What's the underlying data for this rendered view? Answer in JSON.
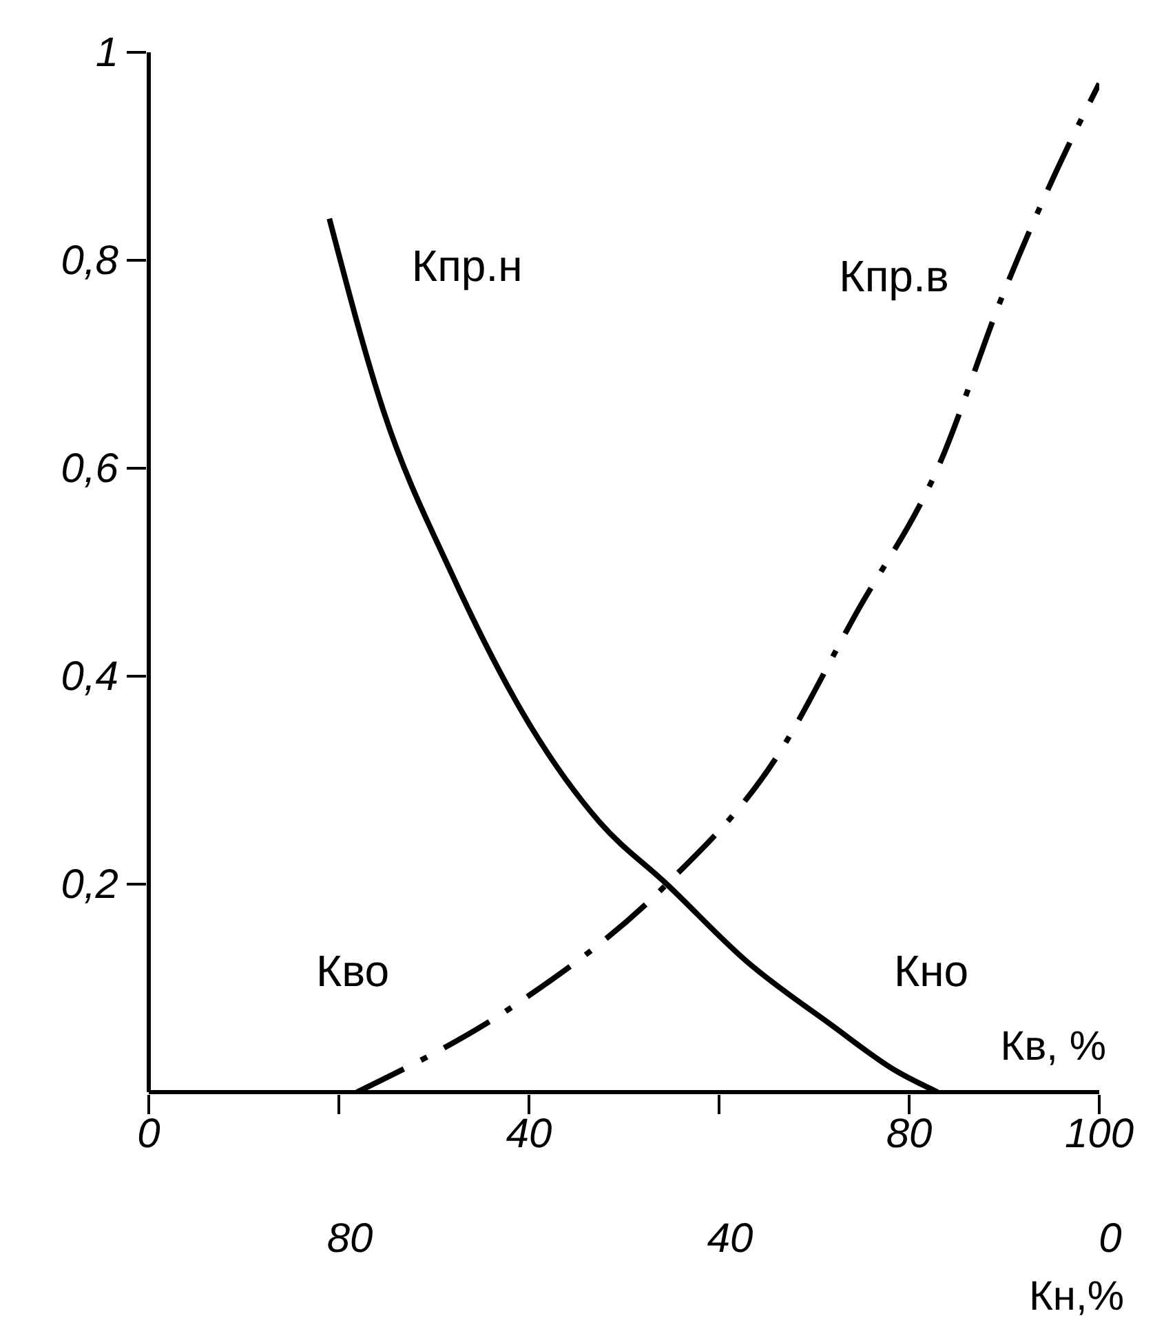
{
  "chart_data": {
    "type": "line",
    "xlabel": "Кв, %",
    "x2label": "Кн,%",
    "xlim": [
      0,
      100
    ],
    "xticks": [
      0,
      {
        "value": 20,
        "label": null
      },
      40,
      {
        "value": 60,
        "label": null
      },
      80,
      100
    ],
    "x2lim": [
      100,
      0
    ],
    "x2ticks": [
      80,
      40,
      0
    ],
    "ylim": [
      0,
      1
    ],
    "yticks": [
      {
        "value": 0.2,
        "label": "0,2"
      },
      {
        "value": 0.4,
        "label": "0,4"
      },
      {
        "value": 0.6,
        "label": "0,6"
      },
      {
        "value": 0.8,
        "label": "0,8"
      },
      1
    ],
    "grid": false,
    "legend": false,
    "annotations": [
      "Кво",
      "Кно"
    ],
    "series": [
      {
        "name": "Кпр.н",
        "color": "#000000",
        "line_style": "solid",
        "x": [
          19,
          24.7,
          31.8,
          40.3,
          47.4,
          54.5,
          63,
          71.6,
          78.7,
          83
        ],
        "values": [
          0.84,
          0.655,
          0.5,
          0.35,
          0.26,
          0.2,
          0.125,
          0.066,
          0.02,
          0
        ]
      },
      {
        "name": "Кпр.в",
        "color": "#000000",
        "line_style": "dashed",
        "x": [
          21.9,
          38.9,
          54.5,
          65.9,
          74.4,
          83,
          90,
          95.7,
          100
        ],
        "values": [
          0,
          0.086,
          0.2,
          0.32,
          0.46,
          0.6,
          0.77,
          0.89,
          0.97
        ]
      }
    ]
  }
}
